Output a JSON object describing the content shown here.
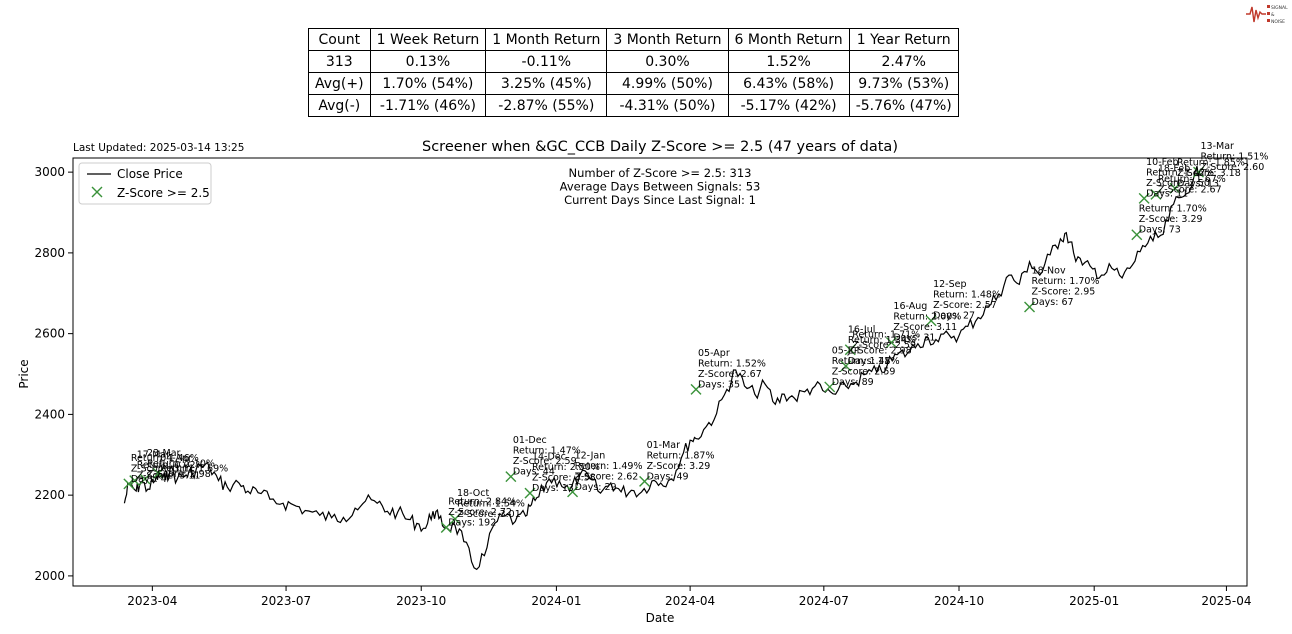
{
  "last_updated": "Last Updated: 2025-03-14 13:25",
  "logo": {
    "lines": [
      "SIGNAL",
      "&",
      "NOISE"
    ],
    "color": "#c0392b"
  },
  "stats_table": {
    "headers": [
      "Count",
      "1 Week Return",
      "1 Month Return",
      "3 Month Return",
      "6 Month Return",
      "1 Year Return"
    ],
    "rows": [
      [
        "313",
        "0.13%",
        "-0.11%",
        "0.30%",
        "1.52%",
        "2.47%"
      ],
      [
        "Avg(+)",
        "1.70% (54%)",
        "3.25% (45%)",
        "4.99% (50%)",
        "6.43% (58%)",
        "9.73% (53%)"
      ],
      [
        "Avg(-)",
        "-1.71% (46%)",
        "-2.87% (55%)",
        "-4.31% (50%)",
        "-5.17% (42%)",
        "-5.76% (47%)"
      ]
    ]
  },
  "chart_data": {
    "type": "line",
    "title": "Screener when &GC_CCB Daily Z-Score >= 2.5 (47 years of data)",
    "xlabel": "Date",
    "ylabel": "Price",
    "xlim": [
      "2023-02-06",
      "2025-04-15"
    ],
    "ylim": [
      1975,
      3035
    ],
    "x_ticks": [
      "2023-04",
      "2023-07",
      "2023-10",
      "2024-01",
      "2024-04",
      "2024-07",
      "2024-10",
      "2025-01",
      "2025-04"
    ],
    "y_ticks": [
      2000,
      2200,
      2400,
      2600,
      2800,
      3000
    ],
    "grid": false,
    "legend": {
      "placement": "upper-left",
      "entries": [
        "Close Price",
        "Z-Score >= 2.5"
      ]
    },
    "info_lines": [
      "Number of Z-Score >= 2.5: 313",
      "Average Days Between Signals: 53",
      "Current Days Since Last Signal: 1"
    ],
    "line_color": "#000000",
    "marker_color": "#3a923a",
    "series": [
      {
        "name": "Close Price",
        "points": [
          [
            "2023-03-13",
            2180
          ],
          [
            "2023-03-16",
            2228
          ],
          [
            "2023-03-21",
            2210
          ],
          [
            "2023-03-24",
            2232
          ],
          [
            "2023-03-29",
            2215
          ],
          [
            "2023-04-03",
            2236
          ],
          [
            "2023-04-06",
            2252
          ],
          [
            "2023-04-10",
            2238
          ],
          [
            "2023-04-13",
            2265
          ],
          [
            "2023-04-18",
            2240
          ],
          [
            "2023-04-24",
            2250
          ],
          [
            "2023-04-28",
            2256
          ],
          [
            "2023-05-04",
            2272
          ],
          [
            "2023-05-10",
            2268
          ],
          [
            "2023-05-16",
            2236
          ],
          [
            "2023-05-22",
            2220
          ],
          [
            "2023-05-30",
            2230
          ],
          [
            "2023-06-05",
            2210
          ],
          [
            "2023-06-12",
            2206
          ],
          [
            "2023-06-20",
            2190
          ],
          [
            "2023-06-29",
            2180
          ],
          [
            "2023-07-06",
            2176
          ],
          [
            "2023-07-14",
            2162
          ],
          [
            "2023-07-24",
            2150
          ],
          [
            "2023-08-01",
            2144
          ],
          [
            "2023-08-09",
            2145
          ],
          [
            "2023-08-17",
            2168
          ],
          [
            "2023-08-24",
            2185
          ],
          [
            "2023-09-01",
            2180
          ],
          [
            "2023-09-08",
            2160
          ],
          [
            "2023-09-15",
            2158
          ],
          [
            "2023-09-22",
            2140
          ],
          [
            "2023-09-28",
            2130
          ],
          [
            "2023-10-04",
            2118
          ],
          [
            "2023-10-09",
            2160
          ],
          [
            "2023-10-13",
            2142
          ],
          [
            "2023-10-18",
            2120
          ],
          [
            "2023-10-24",
            2125
          ],
          [
            "2023-10-30",
            2085
          ],
          [
            "2023-11-06",
            2020
          ],
          [
            "2023-11-13",
            2050
          ],
          [
            "2023-11-20",
            2130
          ],
          [
            "2023-11-27",
            2148
          ],
          [
            "2023-12-04",
            2135
          ],
          [
            "2023-12-11",
            2148
          ],
          [
            "2023-12-15",
            2176
          ],
          [
            "2023-12-20",
            2196
          ],
          [
            "2023-12-27",
            2240
          ],
          [
            "2024-01-03",
            2235
          ],
          [
            "2024-01-10",
            2210
          ],
          [
            "2024-01-17",
            2250
          ],
          [
            "2024-01-24",
            2240
          ],
          [
            "2024-01-31",
            2205
          ],
          [
            "2024-02-07",
            2230
          ],
          [
            "2024-02-14",
            2208
          ],
          [
            "2024-02-21",
            2212
          ],
          [
            "2024-02-28",
            2208
          ],
          [
            "2024-03-06",
            2235
          ],
          [
            "2024-03-12",
            2230
          ],
          [
            "2024-03-19",
            2240
          ],
          [
            "2024-03-26",
            2292
          ],
          [
            "2024-04-01",
            2336
          ],
          [
            "2024-04-05",
            2340
          ],
          [
            "2024-04-12",
            2370
          ],
          [
            "2024-04-19",
            2402
          ],
          [
            "2024-04-26",
            2462
          ],
          [
            "2024-05-02",
            2510
          ],
          [
            "2024-05-08",
            2470
          ],
          [
            "2024-05-15",
            2450
          ],
          [
            "2024-05-22",
            2475
          ],
          [
            "2024-05-29",
            2425
          ],
          [
            "2024-06-04",
            2450
          ],
          [
            "2024-06-11",
            2440
          ],
          [
            "2024-06-18",
            2456
          ],
          [
            "2024-06-25",
            2470
          ],
          [
            "2024-07-02",
            2455
          ],
          [
            "2024-07-09",
            2450
          ],
          [
            "2024-07-16",
            2470
          ],
          [
            "2024-07-23",
            2480
          ],
          [
            "2024-07-30",
            2500
          ],
          [
            "2024-08-06",
            2505
          ],
          [
            "2024-08-13",
            2520
          ],
          [
            "2024-08-20",
            2548
          ],
          [
            "2024-08-27",
            2552
          ],
          [
            "2024-09-03",
            2575
          ],
          [
            "2024-09-10",
            2590
          ],
          [
            "2024-09-17",
            2580
          ],
          [
            "2024-09-24",
            2598
          ],
          [
            "2024-10-01",
            2595
          ],
          [
            "2024-10-07",
            2618
          ],
          [
            "2024-10-14",
            2640
          ],
          [
            "2024-10-21",
            2668
          ],
          [
            "2024-10-28",
            2698
          ],
          [
            "2024-11-04",
            2745
          ],
          [
            "2024-11-11",
            2722
          ],
          [
            "2024-11-18",
            2778
          ],
          [
            "2024-11-25",
            2745
          ],
          [
            "2024-12-02",
            2795
          ],
          [
            "2024-12-09",
            2835
          ],
          [
            "2024-12-13",
            2850
          ],
          [
            "2024-12-18",
            2800
          ],
          [
            "2024-12-24",
            2770
          ],
          [
            "2024-12-31",
            2760
          ],
          [
            "2025-01-06",
            2745
          ],
          [
            "2025-01-13",
            2762
          ],
          [
            "2025-01-20",
            2738
          ],
          [
            "2025-01-27",
            2770
          ],
          [
            "2025-02-03",
            2818
          ],
          [
            "2025-02-10",
            2830
          ],
          [
            "2025-02-17",
            2846
          ],
          [
            "2025-02-24",
            2920
          ],
          [
            "2025-03-03",
            2940
          ],
          [
            "2025-03-10",
            2990
          ],
          [
            "2025-03-14",
            3005
          ]
        ]
      }
    ],
    "signals": [
      {
        "x": "2023-03-16",
        "y": 2228,
        "label": [
          "Return: 1.46%",
          "Z-Score: 3.11",
          "Days: 4"
        ]
      },
      {
        "x": "2023-03-20",
        "y": 2236,
        "label": [
          "17-Mar",
          "Return: 0.02%",
          "Z-Score: 3.11"
        ]
      },
      {
        "x": "2023-03-27",
        "y": 2240,
        "label": [
          "23-Mar",
          "Return: 2.10%",
          "Z-Score: 2.98"
        ]
      },
      {
        "x": "2023-04-05",
        "y": 2254,
        "label": [
          "04-Apr",
          "Return: 1.69%"
        ]
      },
      {
        "x": "2023-10-18",
        "y": 2120,
        "label": [
          "Return: 2.84%",
          "Z-Score: 2.72",
          "Days: 192"
        ]
      },
      {
        "x": "2023-10-24",
        "y": 2141,
        "label": [
          "18-Oct",
          "Return: 1.54%",
          "Z-Score: 3.01"
        ]
      },
      {
        "x": "2023-12-01",
        "y": 2246,
        "label": [
          "01-Dec",
          "Return: 1.47%",
          "Z-Score: 2.59",
          "Days: 44"
        ]
      },
      {
        "x": "2023-12-14",
        "y": 2205,
        "label": [
          "14-Dec",
          "Return: 2.50%",
          "Z-Score: 3.58",
          "Days: 13"
        ]
      },
      {
        "x": "2024-01-12",
        "y": 2208,
        "label": [
          "12-Jan",
          "Return: 1.49%",
          "Z-Score: 2.62",
          "Days: 29"
        ]
      },
      {
        "x": "2024-03-01",
        "y": 2234,
        "label": [
          "01-Mar",
          "Return: 1.87%",
          "Z-Score: 3.29",
          "Days: 49"
        ]
      },
      {
        "x": "2024-04-05",
        "y": 2462,
        "label": [
          "05-Apr",
          "Return: 1.52%",
          "Z-Score: 2.67",
          "Days: 35"
        ]
      },
      {
        "x": "2024-07-05",
        "y": 2468,
        "label": [
          "05-Jul",
          "Return: 1.48%",
          "Z-Score: 2.59",
          "Days: 89"
        ]
      },
      {
        "x": "2024-07-16",
        "y": 2520,
        "label": [
          "16-Jul",
          "Return: 1.34%",
          "Z-Score: 2.98",
          "Days: 11"
        ]
      },
      {
        "x": "2024-07-19",
        "y": 2560,
        "label": [
          "Return: 1.71%",
          "Z-Score: 2.59"
        ]
      },
      {
        "x": "2024-08-16",
        "y": 2578,
        "label": [
          "16-Aug",
          "Return: 2.00%",
          "Z-Score: 3.11",
          "Days: 31"
        ]
      },
      {
        "x": "2024-09-12",
        "y": 2632,
        "label": [
          "12-Sep",
          "Return: 1.48%",
          "Z-Score: 2.57",
          "Days: 27"
        ]
      },
      {
        "x": "2024-11-18",
        "y": 2666,
        "label": [
          "18-Nov",
          "Return: 1.70%",
          "Z-Score: 2.95",
          "Days: 67"
        ]
      },
      {
        "x": "2025-01-30",
        "y": 2845,
        "label": [
          "Return: 1.70%",
          "Z-Score: 3.29",
          "Days: 73"
        ]
      },
      {
        "x": "2025-02-04",
        "y": 2935,
        "label": [
          "10-Feb",
          "Return: 1.42%",
          "Z-Score: 2.50",
          "Days: 11"
        ]
      },
      {
        "x": "2025-02-12",
        "y": 2945,
        "label": [
          "18-Feb",
          "Return: 1.67%",
          "Z-Score: 2.67"
        ]
      },
      {
        "x": "2025-02-25",
        "y": 2960,
        "label": [
          "Return: 1.85%",
          "Z-Score: 3.18",
          "Days: 13"
        ]
      },
      {
        "x": "2025-03-13",
        "y": 3000,
        "label": [
          "13-Mar",
          "Return: 1.51%",
          "Z-Score: 2.60"
        ]
      }
    ]
  }
}
